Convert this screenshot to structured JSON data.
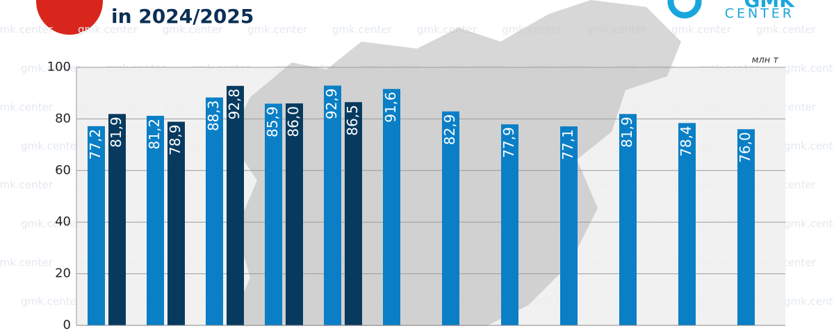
{
  "title": "in 2024/2025",
  "logo": {
    "top": "GMK",
    "bottom": "CENTER"
  },
  "watermark": "gmk.center",
  "chart_data": {
    "type": "bar",
    "unit_label": "млн т",
    "categories": [
      null,
      null,
      null,
      null,
      null,
      null,
      null,
      null,
      null,
      null,
      null,
      null
    ],
    "series": [
      {
        "color": "#0a7fc6",
        "values": [
          77.2,
          81.2,
          88.3,
          85.9,
          92.9,
          91.6,
          82.9,
          77.9,
          77.1,
          81.9,
          78.4,
          76.0
        ],
        "value_labels": [
          "77,2",
          "81,2",
          "88,3",
          "85,9",
          "92,9",
          "91,6",
          "82,9",
          "77,9",
          "77,1",
          "81,9",
          "78,4",
          "76,0"
        ]
      },
      {
        "color": "#073a5e",
        "values": [
          81.9,
          78.9,
          92.8,
          86.0,
          86.5,
          null,
          null,
          null,
          null,
          null,
          null,
          null
        ],
        "value_labels": [
          "81,9",
          "78,9",
          "92,8",
          "86,0",
          "86,5",
          null,
          null,
          null,
          null,
          null,
          null,
          null
        ]
      }
    ],
    "ylim": [
      0,
      100
    ],
    "yticks": [
      0,
      20,
      40,
      60,
      80,
      100
    ],
    "grid": true
  }
}
